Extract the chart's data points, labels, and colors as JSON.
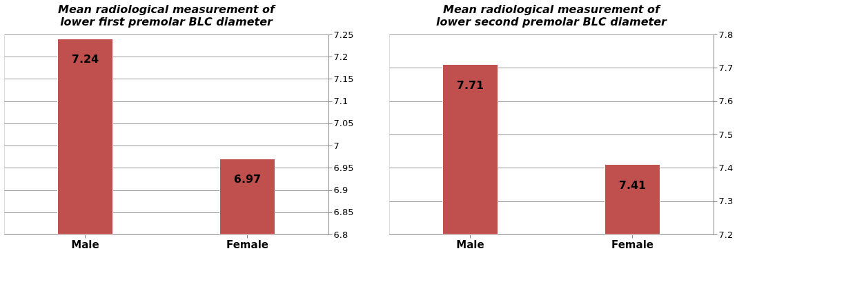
{
  "chart_data": [
    {
      "type": "bar",
      "title": [
        "Mean radiological measurement of",
        "lower first premolar BLC diameter"
      ],
      "categories": [
        "Male",
        "Female"
      ],
      "values": [
        7.24,
        6.97
      ],
      "color": "#c0504d",
      "ylim": [
        6.8,
        7.25
      ],
      "yticks": [
        6.8,
        6.85,
        6.9,
        6.95,
        7,
        7.05,
        7.1,
        7.15,
        7.2,
        7.25
      ],
      "grid": "y",
      "data_labels": true
    },
    {
      "type": "bar",
      "title": [
        "Mean radiological measurement of",
        "lower second premolar BLC diameter"
      ],
      "categories": [
        "Male",
        "Female"
      ],
      "values": [
        7.71,
        7.41
      ],
      "color": "#c0504d",
      "ylim": [
        7.2,
        7.8
      ],
      "yticks": [
        7.2,
        7.3,
        7.4,
        7.5,
        7.6,
        7.7,
        7.8
      ],
      "grid": "y",
      "data_labels": true
    }
  ]
}
